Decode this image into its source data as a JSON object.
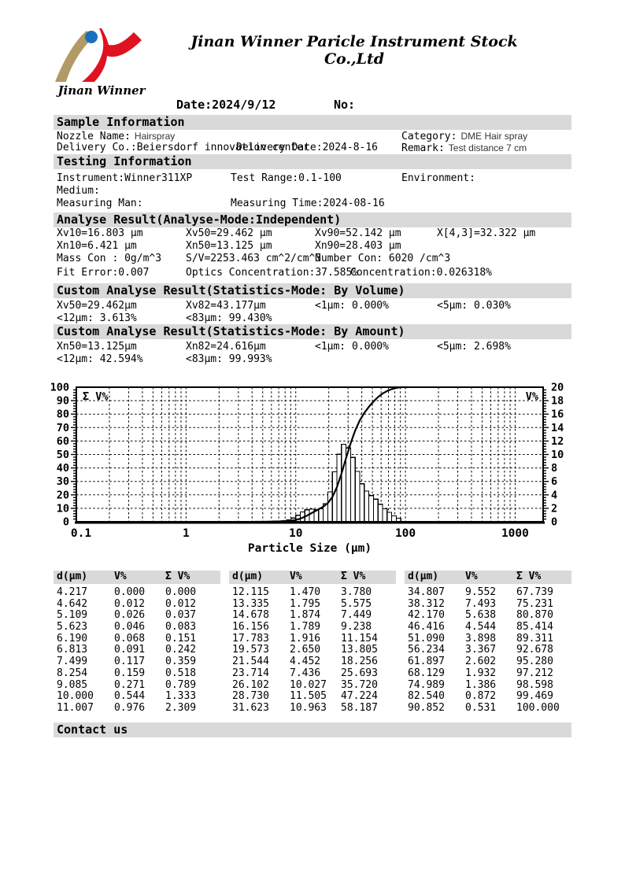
{
  "header": {
    "company_title": "Jinan Winner Paricle Instrument Stock Co.,Ltd",
    "logo_caption": "Jinan Winner",
    "logo_colors": {
      "tan": "#b29a66",
      "blue": "#1a6fbd",
      "red": "#e01222"
    },
    "date": "Date:2024/9/12",
    "no": "No:",
    "section_bar_color": "#d9d9d9"
  },
  "sample_information": {
    "title": "Sample Information",
    "nozzle_label": "Nozzle Name:",
    "nozzle_value": "Hairspray",
    "category_label": "Category:",
    "category_value": "DME Hair spray",
    "delivery_co": "Delivery Co.:Beiersdorf innovation center",
    "delivery_date": "Delivery Date:2024-8-16",
    "remark_label": "Remark:",
    "remark_value": "Test distance 7 cm"
  },
  "testing_information": {
    "title": "Testing Information",
    "instrument": "Instrument:Winner311XP",
    "test_range": "Test Range:0.1-100",
    "environment": "Environment:",
    "medium": "Medium:",
    "measuring_man": "Measuring Man:",
    "measuring_time": "Measuring Time:2024-08-16"
  },
  "analyse_result": {
    "title": "Analyse Result(Analyse-Mode:Independent)",
    "row1": [
      "Xv10=16.803 μm",
      "Xv50=29.462 μm",
      "Xv90=52.142 μm",
      "X[4,3]=32.322 μm"
    ],
    "row2": [
      "Xn10=6.421 μm",
      "Xn50=13.125 μm",
      "Xn90=28.403 μm"
    ],
    "row3": [
      "Mass Con : 0g/m^3",
      "S/V=2253.463 cm^2/cm^3",
      "Number Con: 6020 /cm^3"
    ],
    "row4": [
      "Fit Error:0.007",
      "Optics Concentration:37.585%"
    ],
    "row4_overlap": "Concentration:0.026318%"
  },
  "custom_volume": {
    "title": "Custom Analyse Result(Statistics-Mode: By Volume)",
    "row1": [
      "Xv50=29.462μm",
      "Xv82=43.177μm",
      "<1μm: 0.000%",
      "<5μm: 0.030%"
    ],
    "row2": [
      "<12μm: 3.613%",
      "<83μm: 99.430%"
    ]
  },
  "custom_amount": {
    "title": "Custom Analyse Result(Statistics-Mode: By Amount)",
    "row1": [
      "Xn50=13.125μm",
      "Xn82=24.616μm",
      "<1μm: 0.000%",
      "<5μm: 2.698%"
    ],
    "row2": [
      "<12μm: 42.594%",
      "<83μm: 99.993%"
    ]
  },
  "chart_data": {
    "type": "bar",
    "subtype": "log-histogram-with-cumulative-line",
    "xlabel": "Particle Size (μm)",
    "left_axis": {
      "label": "Σ V%",
      "min": 0,
      "max": 100,
      "step": 10
    },
    "right_axis": {
      "label": "V%",
      "min": 0,
      "max": 20,
      "step": 2
    },
    "x_axis": {
      "scale": "log",
      "min": 0.1,
      "max": 1800,
      "tick_labels": [
        "0.1",
        "1",
        "10",
        "100",
        "1000"
      ]
    },
    "grid": "dashed",
    "bar_fill": "#ffffff",
    "line_color": "#000000",
    "d_um": [
      4.217,
      4.642,
      5.109,
      5.623,
      6.19,
      6.813,
      7.499,
      8.254,
      9.085,
      10.0,
      11.007,
      12.115,
      13.335,
      14.678,
      16.156,
      17.783,
      19.573,
      21.544,
      23.714,
      26.102,
      28.73,
      31.623,
      34.807,
      38.312,
      42.17,
      46.416,
      51.09,
      56.234,
      61.897,
      68.129,
      74.989,
      82.54,
      90.852
    ],
    "v_percent": [
      0.0,
      0.012,
      0.026,
      0.046,
      0.068,
      0.091,
      0.117,
      0.159,
      0.271,
      0.544,
      0.976,
      1.47,
      1.795,
      1.874,
      1.789,
      1.916,
      2.65,
      4.452,
      7.436,
      10.027,
      11.505,
      10.963,
      9.552,
      7.493,
      5.638,
      4.544,
      3.898,
      3.367,
      2.602,
      1.932,
      1.386,
      0.872,
      0.531
    ],
    "cum_v_percent": [
      0.0,
      0.012,
      0.037,
      0.083,
      0.151,
      0.242,
      0.359,
      0.518,
      0.789,
      1.333,
      2.309,
      3.78,
      5.575,
      7.449,
      9.238,
      11.154,
      13.805,
      18.256,
      25.693,
      35.72,
      47.224,
      58.187,
      67.739,
      75.231,
      80.87,
      85.414,
      89.311,
      92.678,
      95.28,
      97.212,
      98.598,
      99.469,
      100.0
    ]
  },
  "table": {
    "headers": [
      "d(μm)",
      "V%",
      "Σ V%"
    ],
    "groups": [
      [
        [
          "4.217",
          "0.000",
          "0.000"
        ],
        [
          "4.642",
          "0.012",
          "0.012"
        ],
        [
          "5.109",
          "0.026",
          "0.037"
        ],
        [
          "5.623",
          "0.046",
          "0.083"
        ],
        [
          "6.190",
          "0.068",
          "0.151"
        ],
        [
          "6.813",
          "0.091",
          "0.242"
        ],
        [
          "7.499",
          "0.117",
          "0.359"
        ],
        [
          "8.254",
          "0.159",
          "0.518"
        ],
        [
          "9.085",
          "0.271",
          "0.789"
        ],
        [
          "10.000",
          "0.544",
          "1.333"
        ],
        [
          "11.007",
          "0.976",
          "2.309"
        ]
      ],
      [
        [
          "12.115",
          "1.470",
          "3.780"
        ],
        [
          "13.335",
          "1.795",
          "5.575"
        ],
        [
          "14.678",
          "1.874",
          "7.449"
        ],
        [
          "16.156",
          "1.789",
          "9.238"
        ],
        [
          "17.783",
          "1.916",
          "11.154"
        ],
        [
          "19.573",
          "2.650",
          "13.805"
        ],
        [
          "21.544",
          "4.452",
          "18.256"
        ],
        [
          "23.714",
          "7.436",
          "25.693"
        ],
        [
          "26.102",
          "10.027",
          "35.720"
        ],
        [
          "28.730",
          "11.505",
          "47.224"
        ],
        [
          "31.623",
          "10.963",
          "58.187"
        ]
      ],
      [
        [
          "34.807",
          "9.552",
          "67.739"
        ],
        [
          "38.312",
          "7.493",
          "75.231"
        ],
        [
          "42.170",
          "5.638",
          "80.870"
        ],
        [
          "46.416",
          "4.544",
          "85.414"
        ],
        [
          "51.090",
          "3.898",
          "89.311"
        ],
        [
          "56.234",
          "3.367",
          "92.678"
        ],
        [
          "61.897",
          "2.602",
          "95.280"
        ],
        [
          "68.129",
          "1.932",
          "97.212"
        ],
        [
          "74.989",
          "1.386",
          "98.598"
        ],
        [
          "82.540",
          "0.872",
          "99.469"
        ],
        [
          "90.852",
          "0.531",
          "100.000"
        ]
      ]
    ]
  },
  "contact": {
    "title": "Contact us"
  }
}
